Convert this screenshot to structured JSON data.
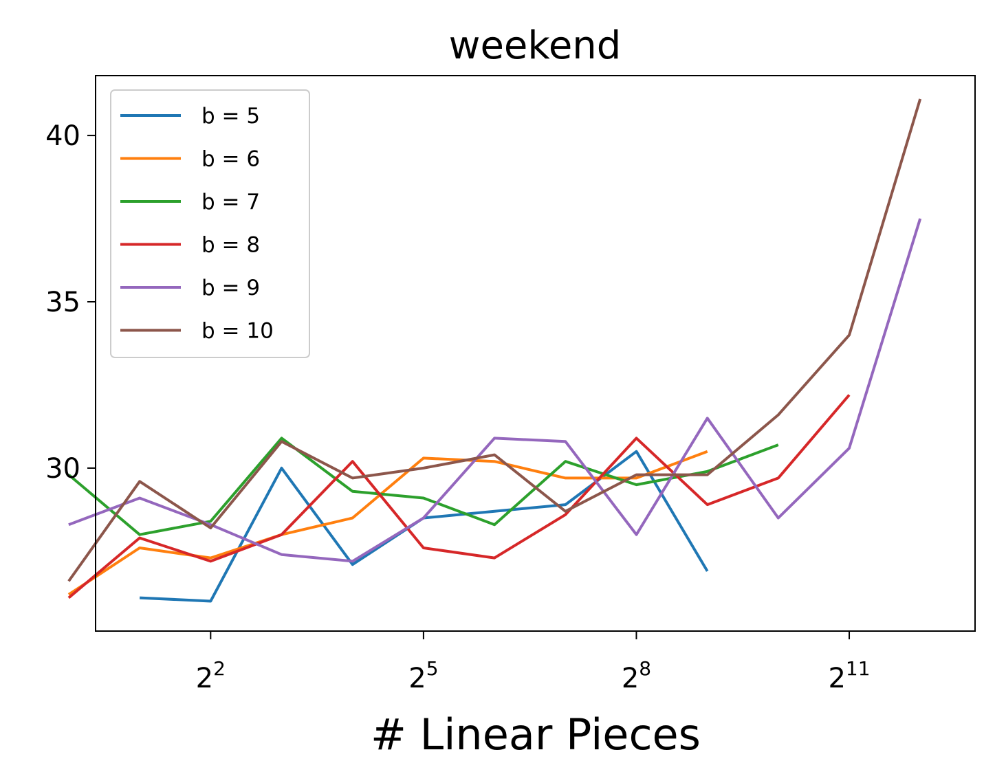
{
  "chart_data": {
    "type": "line",
    "title": "weekend",
    "xlabel": "# Linear Pieces",
    "ylabel": "",
    "x_scale": "log2",
    "x_tick_labels": [
      {
        "base": "2",
        "exp": "2"
      },
      {
        "base": "2",
        "exp": "5"
      },
      {
        "base": "2",
        "exp": "8"
      },
      {
        "base": "2",
        "exp": "11"
      }
    ],
    "x_ticks": [
      4,
      32,
      256,
      2048
    ],
    "y_ticks": [
      "30",
      "35",
      "40"
    ],
    "xlim": [
      1.3,
      7000
    ],
    "ylim": [
      25.1,
      41.8
    ],
    "legend_position": "upper left",
    "grid": false,
    "series": [
      {
        "name": "b = 5",
        "color": "#1f77b4",
        "x": [
          2,
          4,
          8,
          16,
          32,
          64,
          128,
          256,
          512
        ],
        "y": [
          26.1,
          26.0,
          30.0,
          27.1,
          28.5,
          28.7,
          28.9,
          30.5,
          26.9
        ]
      },
      {
        "name": "b = 6",
        "color": "#ff7f0e",
        "x": [
          1,
          2,
          4,
          8,
          16,
          32,
          64,
          128,
          256,
          512
        ],
        "y": [
          26.2,
          27.6,
          27.3,
          28.0,
          28.5,
          30.3,
          30.2,
          29.7,
          29.7,
          30.5
        ]
      },
      {
        "name": "b = 7",
        "color": "#2ca02c",
        "x": [
          1,
          2,
          4,
          8,
          16,
          32,
          64,
          128,
          256,
          512,
          1024
        ],
        "y": [
          29.8,
          28.0,
          28.4,
          30.9,
          29.3,
          29.1,
          28.3,
          30.2,
          29.5,
          29.9,
          30.7
        ]
      },
      {
        "name": "b = 8",
        "color": "#d62728",
        "x": [
          1,
          2,
          4,
          8,
          16,
          32,
          64,
          128,
          256,
          512,
          1024,
          2048
        ],
        "y": [
          26.1,
          27.9,
          27.2,
          28.0,
          30.2,
          27.6,
          27.3,
          28.6,
          30.9,
          28.9,
          29.7,
          32.2
        ]
      },
      {
        "name": "b = 9",
        "color": "#9467bd",
        "x": [
          1,
          2,
          4,
          8,
          16,
          32,
          64,
          128,
          256,
          512,
          1024,
          2048,
          4096
        ],
        "y": [
          28.3,
          29.1,
          28.3,
          27.4,
          27.2,
          28.5,
          30.9,
          30.8,
          28.0,
          31.5,
          28.5,
          30.6,
          37.5
        ]
      },
      {
        "name": "b = 10",
        "color": "#8c564b",
        "x": [
          1,
          2,
          4,
          8,
          16,
          32,
          64,
          128,
          256,
          512,
          1024,
          2048,
          4096
        ],
        "y": [
          26.6,
          29.6,
          28.2,
          30.8,
          29.7,
          30.0,
          30.4,
          28.7,
          29.8,
          29.8,
          31.6,
          34.0,
          41.1
        ]
      }
    ]
  }
}
